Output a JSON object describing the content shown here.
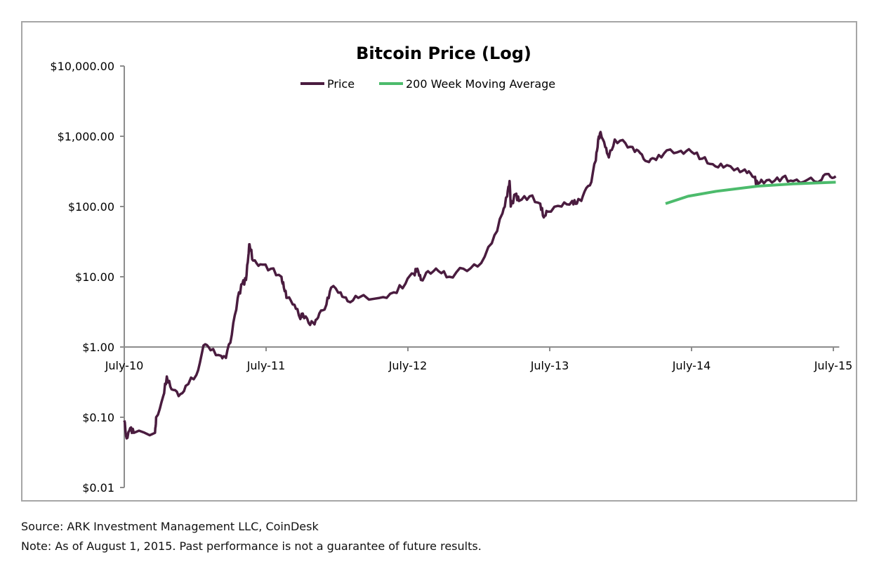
{
  "chart_data": {
    "type": "line",
    "title": "Bitcoin Price (Log)",
    "xlabel": "",
    "ylabel": "",
    "yscale": "log",
    "ylim": [
      0.01,
      10000
    ],
    "y_ticks": [
      10000,
      1000,
      100,
      10,
      1,
      0.1,
      0.01
    ],
    "y_tick_labels": [
      "$10,000.00",
      "$1,000.00",
      "$100.00",
      "$10.00",
      "$1.00",
      "$0.10",
      "$0.01"
    ],
    "x_unit": "months since July 2010",
    "xlim": [
      0,
      60.5
    ],
    "x_ticks": [
      0,
      12,
      24,
      36,
      48,
      60
    ],
    "x_tick_labels": [
      "July-10",
      "July-11",
      "July-12",
      "July-13",
      "July-14",
      "July-15"
    ],
    "x_axis_crosses_at": 1,
    "legend_position": "top-center",
    "grid": false,
    "series": [
      {
        "name": "Price",
        "color": "#4a1c3f",
        "points": [
          [
            0,
            0.09
          ],
          [
            0.2,
            0.05
          ],
          [
            0.5,
            0.07
          ],
          [
            0.8,
            0.06
          ],
          [
            2.6,
            0.06
          ],
          [
            2.7,
            0.1
          ],
          [
            3.3,
            0.2
          ],
          [
            3.6,
            0.38
          ],
          [
            4.0,
            0.25
          ],
          [
            4.6,
            0.2
          ],
          [
            5.2,
            0.28
          ],
          [
            6.1,
            0.4
          ],
          [
            6.7,
            1.05
          ],
          [
            7.3,
            0.9
          ],
          [
            8.2,
            0.75
          ],
          [
            8.6,
            0.7
          ],
          [
            9.1,
            1.5
          ],
          [
            9.6,
            5
          ],
          [
            10.0,
            8
          ],
          [
            10.3,
            9
          ],
          [
            10.5,
            20
          ],
          [
            10.6,
            29
          ],
          [
            10.9,
            17
          ],
          [
            11.5,
            15
          ],
          [
            12.4,
            13
          ],
          [
            13.3,
            10
          ],
          [
            13.5,
            7
          ],
          [
            13.8,
            5
          ],
          [
            14.4,
            4
          ],
          [
            14.9,
            2.5
          ],
          [
            15.1,
            3
          ],
          [
            15.6,
            2.2
          ],
          [
            16.1,
            2.1
          ],
          [
            16.5,
            3
          ],
          [
            17.1,
            4
          ],
          [
            17.5,
            7
          ],
          [
            18.3,
            6
          ],
          [
            18.9,
            4.5
          ],
          [
            19.8,
            5
          ],
          [
            21.6,
            5
          ],
          [
            22.8,
            6
          ],
          [
            23.8,
            8
          ],
          [
            24.5,
            11
          ],
          [
            24.8,
            13
          ],
          [
            25.1,
            9
          ],
          [
            25.7,
            12
          ],
          [
            26.6,
            12
          ],
          [
            27.5,
            10
          ],
          [
            28.7,
            13
          ],
          [
            29.9,
            14
          ],
          [
            31.1,
            30
          ],
          [
            32.0,
            80
          ],
          [
            32.4,
            140
          ],
          [
            32.6,
            230
          ],
          [
            32.7,
            100
          ],
          [
            33.1,
            150
          ],
          [
            33.4,
            120
          ],
          [
            34.3,
            140
          ],
          [
            35.2,
            110
          ],
          [
            35.5,
            70
          ],
          [
            35.8,
            85
          ],
          [
            37.0,
            100
          ],
          [
            37.9,
            120
          ],
          [
            38.3,
            110
          ],
          [
            38.8,
            140
          ],
          [
            39.4,
            200
          ],
          [
            39.9,
            450
          ],
          [
            40.1,
            900
          ],
          [
            40.3,
            1150
          ],
          [
            40.7,
            700
          ],
          [
            41.0,
            500
          ],
          [
            41.5,
            900
          ],
          [
            42.4,
            800
          ],
          [
            43.2,
            600
          ],
          [
            43.8,
            550
          ],
          [
            44.4,
            430
          ],
          [
            45.0,
            460
          ],
          [
            45.9,
            630
          ],
          [
            47.1,
            620
          ],
          [
            48.0,
            600
          ],
          [
            48.9,
            480
          ],
          [
            49.8,
            400
          ],
          [
            50.7,
            360
          ],
          [
            51.9,
            350
          ],
          [
            52.7,
            300
          ],
          [
            53.3,
            260
          ],
          [
            53.6,
            200
          ],
          [
            53.9,
            240
          ],
          [
            54.8,
            220
          ],
          [
            55.7,
            260
          ],
          [
            56.6,
            230
          ],
          [
            57.8,
            240
          ],
          [
            59.0,
            240
          ],
          [
            59.6,
            290
          ],
          [
            60.2,
            270
          ]
        ]
      },
      {
        "name": "200 Week Moving Average",
        "color": "#4cbb6c",
        "points": [
          [
            45.8,
            110
          ],
          [
            47.7,
            140
          ],
          [
            50.1,
            165
          ],
          [
            53.6,
            195
          ],
          [
            56.6,
            210
          ],
          [
            60.2,
            222
          ]
        ]
      }
    ]
  },
  "footnotes": {
    "source": "Source: ARK Investment Management LLC, CoinDesk",
    "note": "Note: As of August 1, 2015. Past performance is not a guarantee of future results."
  }
}
